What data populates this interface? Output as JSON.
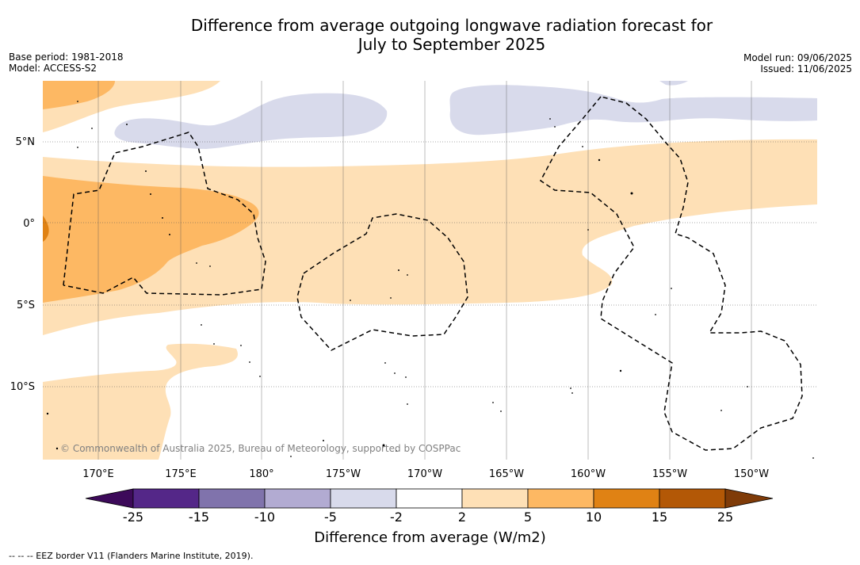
{
  "title": {
    "line1": "Difference from average outgoing longwave radiation forecast for",
    "line2": "July to September 2025"
  },
  "meta_left": {
    "base_period": "Base period: 1981-2018",
    "model": "Model: ACCESS-S2"
  },
  "meta_right": {
    "model_run": "Model run: 09/06/2025",
    "issued": "Issued: 11/06/2025"
  },
  "map": {
    "lat_labels": [
      "5°N",
      "0°",
      "5°S",
      "10°S"
    ],
    "lon_labels": [
      "170°E",
      "175°E",
      "180°",
      "175°W",
      "170°W",
      "165°W",
      "160°W",
      "155°W",
      "150°W"
    ],
    "copyright": "© Commonwealth of Australia 2025, Bureau of Meteorology, supported by COSPPac"
  },
  "colorbar": {
    "ticks": [
      "-25",
      "-15",
      "-10",
      "-5",
      "-2",
      "2",
      "5",
      "10",
      "15",
      "25"
    ],
    "colors": [
      "#3d0a5a",
      "#542788",
      "#8073ac",
      "#b2abd2",
      "#d8daeb",
      "#ffffff",
      "#fee0b6",
      "#fdb863",
      "#e08214",
      "#b35806",
      "#7f3b08"
    ],
    "label": "Difference from average (W/m2)"
  },
  "legend_note": "--  --  -- EEZ border V11 (Flanders Marine Institute, 2019)."
}
